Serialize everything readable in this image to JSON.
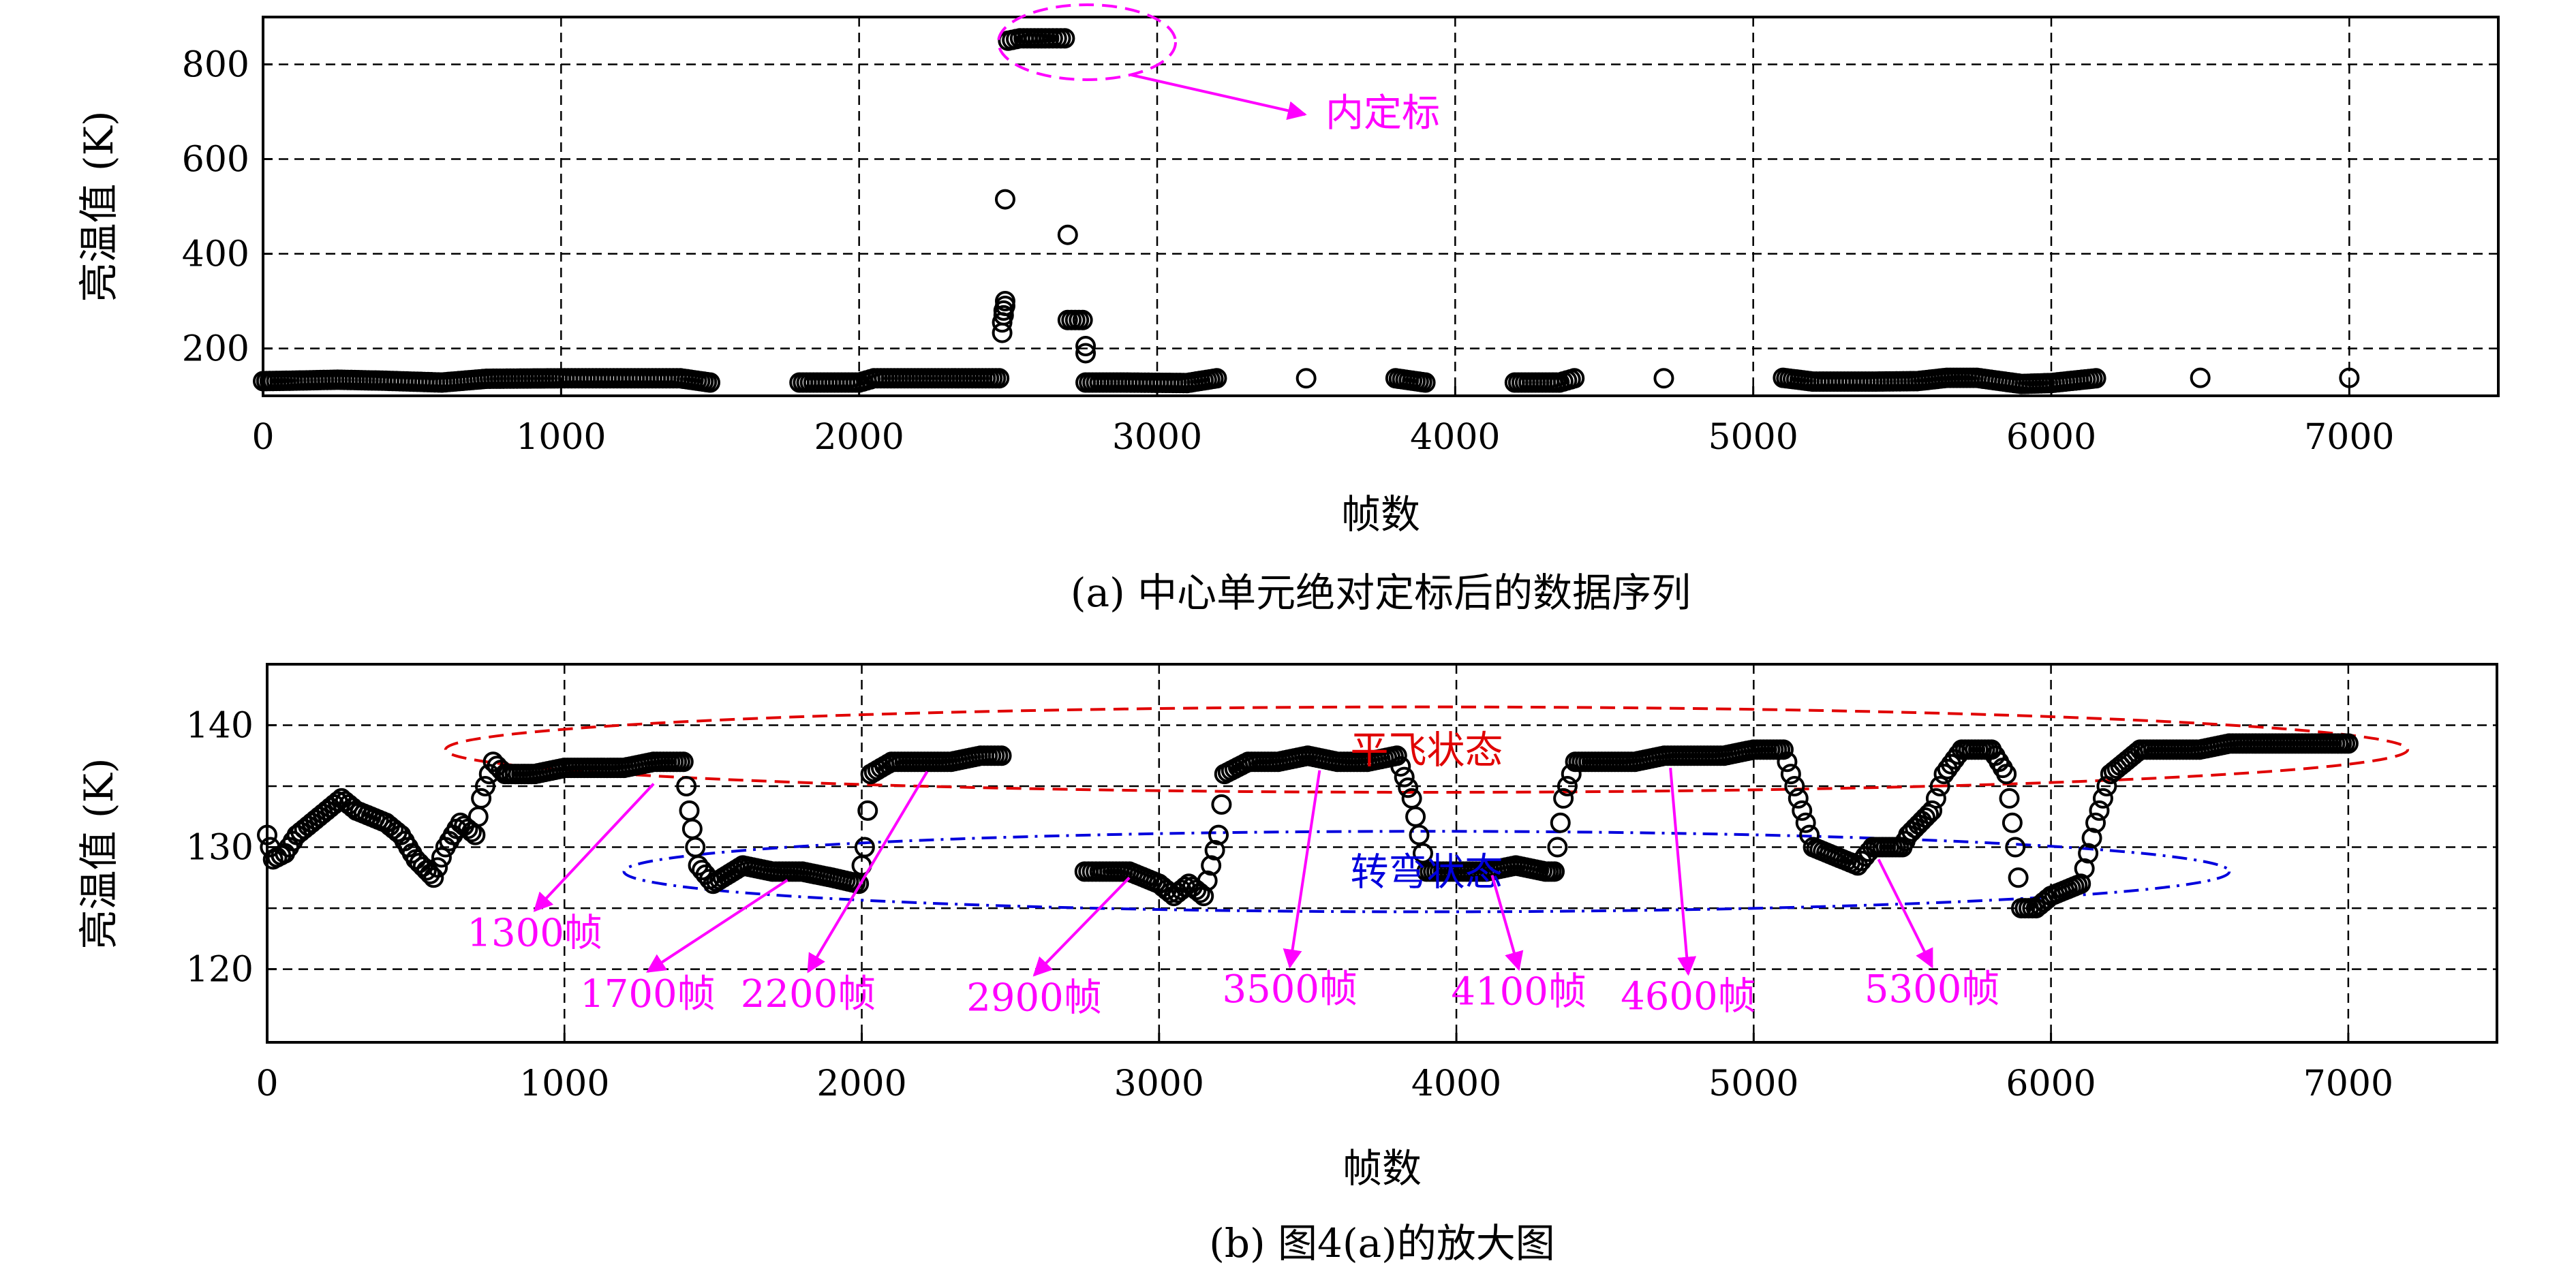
{
  "chart_data": [
    {
      "type": "scatter",
      "xlabel": "帧数",
      "ylabel": "亮温值 (K)",
      "caption": "(a) 中心单元绝对定标后的数据序列",
      "xlim": [
        0,
        7500
      ],
      "ylim": [
        100,
        900
      ],
      "xticks": [
        "0",
        "1000",
        "2000",
        "3000",
        "4000",
        "5000",
        "6000",
        "7000"
      ],
      "xtick_values": [
        0,
        1000,
        2000,
        3000,
        4000,
        5000,
        6000,
        7000
      ],
      "yticks": [
        "200",
        "400",
        "600",
        "800"
      ],
      "ytick_values": [
        200,
        400,
        600,
        800
      ],
      "grid": true,
      "marker": "open-circle",
      "series": [
        {
          "points": [
            [
              0,
              131
            ],
            [
              100,
              132
            ],
            [
              250,
              134
            ],
            [
              400,
              132
            ],
            [
              600,
              128
            ],
            [
              750,
              136
            ],
            [
              1000,
              137
            ],
            [
              1200,
              137
            ],
            [
              1400,
              137
            ],
            [
              1500,
              128
            ],
            [
              1800,
              128
            ],
            [
              2000,
              128
            ],
            [
              2050,
              137
            ],
            [
              2300,
              137
            ],
            [
              2470,
              137
            ],
            [
              2480,
              233
            ],
            [
              2480,
              255
            ],
            [
              2485,
              270
            ],
            [
              2485,
              280
            ],
            [
              2490,
              290
            ],
            [
              2490,
              300
            ],
            [
              2490,
              515
            ],
            [
              2500,
              850
            ],
            [
              2540,
              855
            ],
            [
              2600,
              855
            ],
            [
              2650,
              855
            ],
            [
              2690,
              855
            ],
            [
              2700,
              440
            ],
            [
              2700,
              260
            ],
            [
              2750,
              260
            ],
            [
              2760,
              205
            ],
            [
              2760,
              190
            ],
            [
              2760,
              128
            ],
            [
              2900,
              128
            ],
            [
              3100,
              127
            ],
            [
              3200,
              137
            ],
            [
              3500,
              137
            ],
            [
              3800,
              137
            ],
            [
              3900,
              128
            ],
            [
              4200,
              128
            ],
            [
              4350,
              128
            ],
            [
              4400,
              137
            ],
            [
              4700,
              137
            ],
            [
              5100,
              138
            ],
            [
              5200,
              130
            ],
            [
              5400,
              130
            ],
            [
              5550,
              131
            ],
            [
              5650,
              138
            ],
            [
              5750,
              138
            ],
            [
              5900,
              125
            ],
            [
              6000,
              127
            ],
            [
              6150,
              137
            ],
            [
              6500,
              138
            ],
            [
              7000,
              138
            ]
          ]
        }
      ],
      "annotations": [
        {
          "text": "内定标",
          "x": 2550,
          "y": 855,
          "text_x": 3550,
          "text_y": 800,
          "color": "#ff00ff",
          "ellipse": true
        }
      ]
    },
    {
      "type": "scatter",
      "xlabel": "帧数",
      "ylabel": "亮温值 (K)",
      "caption": "(b) 图4(a)的放大图",
      "xlim": [
        0,
        7500
      ],
      "ylim": [
        114,
        145
      ],
      "xticks": [
        "0",
        "1000",
        "2000",
        "3000",
        "4000",
        "5000",
        "6000",
        "7000"
      ],
      "xtick_values": [
        0,
        1000,
        2000,
        3000,
        4000,
        5000,
        6000,
        7000
      ],
      "yticks": [
        "120",
        "130",
        "140"
      ],
      "ytick_values": [
        120,
        130,
        140
      ],
      "gridlines_y": [
        120,
        125,
        130,
        135,
        140
      ],
      "grid": true,
      "marker": "open-circle",
      "series": [
        {
          "points": [
            [
              0,
              131
            ],
            [
              20,
              129
            ],
            [
              60,
              129.5
            ],
            [
              100,
              131
            ],
            [
              150,
              132
            ],
            [
              200,
              133
            ],
            [
              250,
              134
            ],
            [
              300,
              133
            ],
            [
              350,
              132.5
            ],
            [
              400,
              132
            ],
            [
              450,
              131
            ],
            [
              500,
              129
            ],
            [
              560,
              127.5
            ],
            [
              600,
              130
            ],
            [
              650,
              132
            ],
            [
              700,
              131
            ],
            [
              720,
              134
            ],
            [
              760,
              137
            ],
            [
              800,
              136
            ],
            [
              900,
              136
            ],
            [
              1000,
              136.5
            ],
            [
              1100,
              136.5
            ],
            [
              1200,
              136.5
            ],
            [
              1300,
              137
            ],
            [
              1400,
              137
            ],
            [
              1420,
              133
            ],
            [
              1450,
              128.5
            ],
            [
              1500,
              127
            ],
            [
              1600,
              128.5
            ],
            [
              1700,
              128
            ],
            [
              1800,
              128
            ],
            [
              1900,
              127.5
            ],
            [
              1990,
              127
            ],
            [
              2010,
              130
            ],
            [
              2030,
              136
            ],
            [
              2100,
              137
            ],
            [
              2200,
              137
            ],
            [
              2300,
              137
            ],
            [
              2400,
              137.5
            ],
            [
              2470,
              137.5
            ],
            [
              2750,
              128
            ],
            [
              2800,
              128
            ],
            [
              2900,
              128
            ],
            [
              3000,
              127
            ],
            [
              3050,
              126
            ],
            [
              3100,
              127
            ],
            [
              3150,
              126
            ],
            [
              3200,
              131
            ],
            [
              3220,
              136
            ],
            [
              3300,
              137
            ],
            [
              3400,
              137
            ],
            [
              3500,
              137.5
            ],
            [
              3600,
              137
            ],
            [
              3700,
              137
            ],
            [
              3800,
              137.5
            ],
            [
              3850,
              134
            ],
            [
              3900,
              128
            ],
            [
              4000,
              128
            ],
            [
              4100,
              128
            ],
            [
              4200,
              128.5
            ],
            [
              4300,
              128
            ],
            [
              4330,
              128
            ],
            [
              4360,
              134
            ],
            [
              4400,
              137
            ],
            [
              4500,
              137
            ],
            [
              4600,
              137
            ],
            [
              4700,
              137.5
            ],
            [
              4800,
              137.5
            ],
            [
              4900,
              137.5
            ],
            [
              5000,
              138
            ],
            [
              5100,
              138
            ],
            [
              5150,
              134
            ],
            [
              5200,
              130
            ],
            [
              5300,
              129
            ],
            [
              5350,
              128.5
            ],
            [
              5400,
              130
            ],
            [
              5500,
              130
            ],
            [
              5520,
              131
            ],
            [
              5600,
              133
            ],
            [
              5640,
              136
            ],
            [
              5700,
              138
            ],
            [
              5800,
              138
            ],
            [
              5850,
              136
            ],
            [
              5880,
              130
            ],
            [
              5900,
              125
            ],
            [
              5950,
              125
            ],
            [
              6000,
              126
            ],
            [
              6100,
              127
            ],
            [
              6150,
              132
            ],
            [
              6200,
              136
            ],
            [
              6300,
              138
            ],
            [
              6400,
              138
            ],
            [
              6500,
              138
            ],
            [
              6600,
              138.5
            ],
            [
              6700,
              138.5
            ],
            [
              6800,
              138.5
            ],
            [
              6900,
              138.5
            ],
            [
              7000,
              138.5
            ]
          ]
        }
      ],
      "annotations": [
        {
          "text": "平飞状态",
          "color": "#e00000",
          "ellipse_center": [
            3900,
            138
          ],
          "ellipse_rx": 3300,
          "ellipse_ry": 3.5
        },
        {
          "text": "转弯状态",
          "color": "#0000dd",
          "ellipse_center": [
            3900,
            128
          ],
          "ellipse_rx": 2700,
          "ellipse_ry": 3.3
        },
        {
          "text": "1300帧",
          "color": "#ff00ff",
          "arrow_from": [
            1300,
            135.2
          ],
          "arrow_to": [
            900,
            124.8
          ]
        },
        {
          "text": "1700帧",
          "color": "#ff00ff",
          "arrow_from": [
            1750,
            127.3
          ],
          "arrow_to": [
            1280,
            119.8
          ]
        },
        {
          "text": "2200帧",
          "color": "#ff00ff",
          "arrow_from": [
            2220,
            136.2
          ],
          "arrow_to": [
            1820,
            119.8
          ]
        },
        {
          "text": "2900帧",
          "color": "#ff00ff",
          "arrow_from": [
            2900,
            127.5
          ],
          "arrow_to": [
            2580,
            119.5
          ]
        },
        {
          "text": "3500帧",
          "color": "#ff00ff",
          "arrow_from": [
            3540,
            136.3
          ],
          "arrow_to": [
            3440,
            120.2
          ]
        },
        {
          "text": "4100帧",
          "color": "#ff00ff",
          "arrow_from": [
            4120,
            127.7
          ],
          "arrow_to": [
            4210,
            120.0
          ]
        },
        {
          "text": "4600帧",
          "color": "#ff00ff",
          "arrow_from": [
            4720,
            136.5
          ],
          "arrow_to": [
            4780,
            119.6
          ]
        },
        {
          "text": "5300帧",
          "color": "#ff00ff",
          "arrow_from": [
            5420,
            129.0
          ],
          "arrow_to": [
            5600,
            120.2
          ]
        }
      ]
    }
  ],
  "colors": {
    "magenta": "#ff00ff",
    "red": "#e00000",
    "blue": "#0000dd",
    "axis": "#000000"
  }
}
